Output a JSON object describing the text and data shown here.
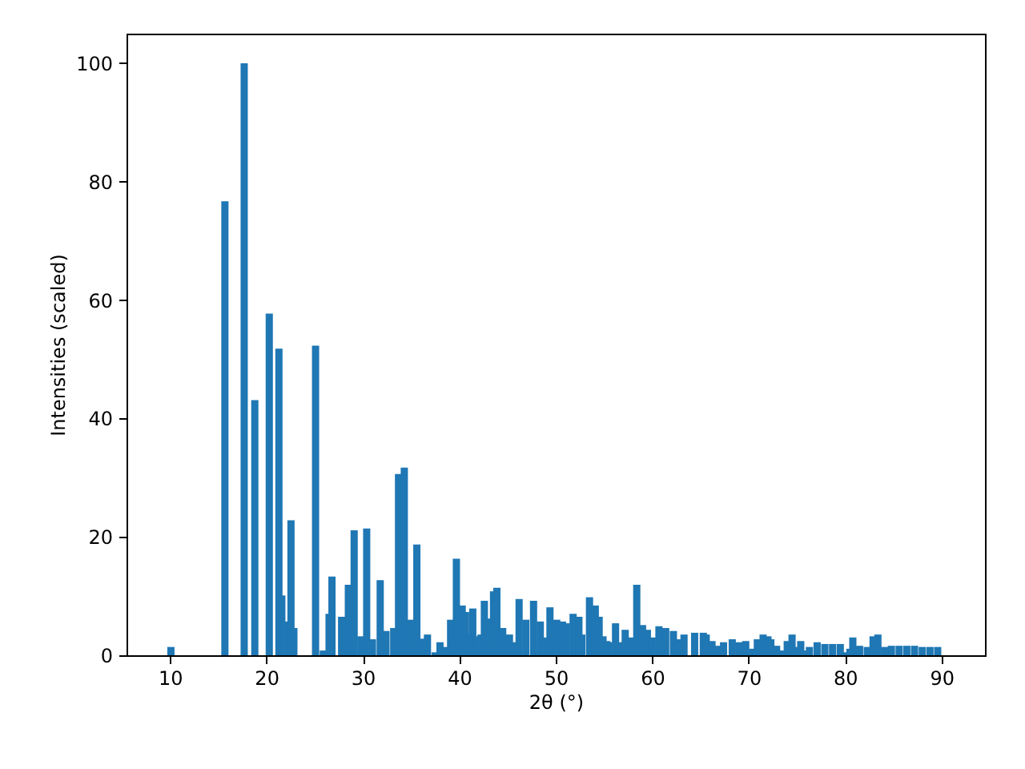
{
  "chart_data": {
    "type": "bar",
    "xlabel": "2θ (°)",
    "ylabel": "Intensities (scaled)",
    "color": "#1f77b4",
    "x": [
      10.1,
      15.7,
      17.7,
      18.8,
      20.3,
      21.3,
      21.6,
      21.85,
      22.55,
      22.85,
      25.1,
      25.9,
      26.5,
      26.8,
      27.8,
      28.5,
      29.1,
      29.8,
      30.4,
      31.0,
      31.8,
      32.4,
      33.2,
      33.7,
      34.3,
      34.9,
      35.6,
      36.2,
      36.7,
      37.5,
      38.0,
      38.6,
      39.1,
      39.7,
      40.3,
      40.65,
      41.0,
      41.4,
      41.85,
      42.25,
      42.6,
      43.15,
      43.55,
      43.9,
      44.5,
      45.2,
      45.5,
      46.2,
      46.9,
      47.7,
      48.4,
      48.9,
      49.4,
      50.1,
      50.7,
      51.1,
      51.8,
      52.4,
      52.7,
      53.5,
      54.1,
      54.5,
      54.9,
      55.3,
      55.8,
      56.2,
      56.7,
      57.2,
      57.7,
      58.4,
      59.0,
      59.5,
      60.0,
      60.7,
      61.4,
      62.2,
      62.8,
      63.3,
      64.4,
      65.3,
      65.6,
      66.2,
      66.8,
      67.4,
      68.3,
      69.0,
      69.7,
      70.4,
      70.9,
      71.5,
      72.0,
      72.3,
      72.9,
      73.3,
      74.0,
      74.5,
      75.0,
      75.4,
      75.9,
      76.3,
      77.1,
      77.9,
      78.7,
      79.5,
      80.1,
      80.5,
      80.8,
      81.5,
      82.3,
      82.9,
      83.4,
      84.1,
      84.8,
      85.6,
      86.4,
      87.2,
      88.0,
      88.8,
      89.6
    ],
    "values": [
      1.4,
      76.7,
      100,
      43.1,
      57.7,
      51.8,
      10.1,
      5.7,
      22.8,
      4.6,
      52.3,
      0.8,
      7.0,
      13.3,
      6.5,
      11.9,
      21.1,
      3.2,
      21.4,
      2.7,
      12.7,
      4.1,
      4.6,
      30.6,
      31.7,
      6.0,
      18.7,
      2.8,
      3.5,
      0.5,
      2.2,
      1.4,
      6.0,
      16.3,
      8.4,
      7.3,
      3.5,
      7.9,
      3.2,
      3.5,
      9.2,
      6.2,
      10.8,
      11.4,
      4.6,
      3.5,
      2.2,
      9.5,
      6.0,
      9.2,
      5.7,
      3.0,
      8.1,
      6.0,
      5.7,
      5.4,
      7.0,
      6.5,
      3.5,
      9.8,
      8.4,
      6.5,
      3.2,
      2.4,
      2.2,
      5.4,
      2.2,
      4.3,
      3.0,
      11.9,
      5.1,
      4.3,
      3.0,
      4.9,
      4.6,
      4.1,
      2.7,
      3.5,
      3.8,
      3.8,
      3.5,
      2.4,
      1.6,
      2.2,
      2.7,
      2.2,
      2.4,
      1.1,
      2.7,
      3.5,
      3.2,
      2.7,
      1.6,
      0.8,
      2.4,
      3.5,
      1.4,
      2.4,
      0.8,
      1.4,
      2.2,
      1.9,
      1.9,
      1.9,
      0.5,
      1.1,
      3.0,
      1.6,
      1.4,
      3.2,
      3.5,
      1.4,
      1.6,
      1.6,
      1.6,
      1.6,
      1.4,
      1.4,
      1.4
    ],
    "xlim": [
      5.5,
      94.5
    ],
    "xticks": [
      10,
      20,
      30,
      40,
      50,
      60,
      70,
      80,
      90
    ],
    "ylim": [
      0,
      105
    ],
    "yticks": [
      0,
      20,
      40,
      60,
      80,
      100
    ],
    "grid": false
  }
}
